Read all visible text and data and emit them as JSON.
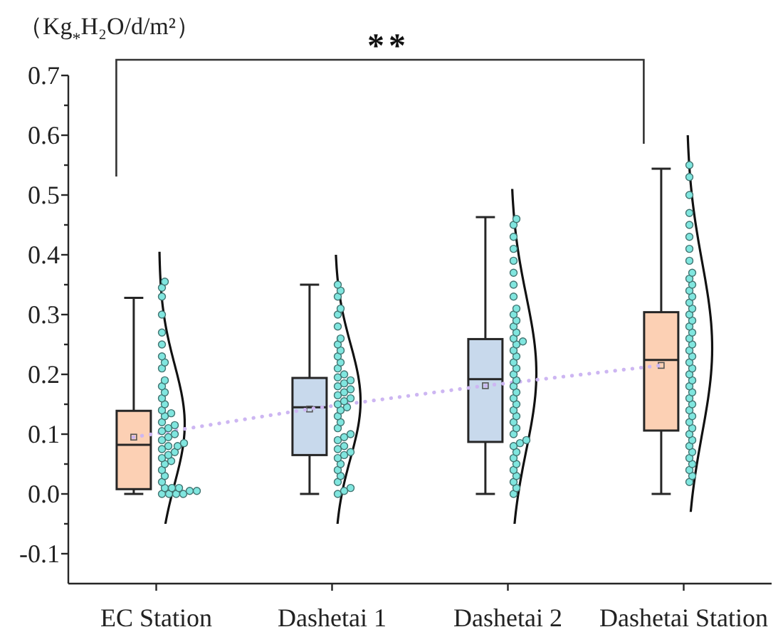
{
  "chart_data": {
    "type": "box",
    "ylabel": "（Kg$_{*}$H₂O/d/m²）",
    "annotations": [
      "**"
    ],
    "categories": [
      "EC Station",
      "Dashetai 1",
      "Dashetai 2",
      "Dashetai Station"
    ],
    "ylim": [
      -0.15,
      0.7
    ],
    "yticks": [
      -0.1,
      {
        "value": -0.05,
        "label": null
      },
      {
        "value": 0,
        "label": "0.0"
      },
      {
        "value": 0.05,
        "label": null
      },
      0.1,
      {
        "value": 0.15,
        "label": null
      },
      0.2,
      {
        "value": 0.25,
        "label": null
      },
      0.3,
      {
        "value": 0.35,
        "label": null
      },
      0.4,
      {
        "value": 0.45,
        "label": null
      },
      0.5,
      {
        "value": 0.55,
        "label": null
      },
      0.6,
      {
        "value": 0.65,
        "label": null
      },
      0.7
    ],
    "series": [
      {
        "type": "box",
        "colors": [
          "#fcd0b4",
          "#c8d9ec",
          "#c8d9ec",
          "#fcd0b4"
        ],
        "boxes": [
          {
            "low": 0,
            "q1": 0.008,
            "median": 0.082,
            "q3": 0.139,
            "high": 0.328,
            "mean": 0.095
          },
          {
            "low": 0,
            "q1": 0.065,
            "median": 0.145,
            "q3": 0.194,
            "high": 0.35,
            "mean": 0.142
          },
          {
            "low": 0,
            "q1": 0.087,
            "median": 0.192,
            "q3": 0.259,
            "high": 0.463,
            "mean": 0.181
          },
          {
            "low": 0,
            "q1": 0.106,
            "median": 0.224,
            "q3": 0.304,
            "high": 0.544,
            "mean": 0.215
          }
        ]
      },
      {
        "type": "line",
        "color": "#cdb6f2",
        "line_style": "dotted",
        "values": [
          0.095,
          0.142,
          0.181,
          0.215
        ]
      },
      {
        "type": "scatter",
        "color": "#80e6df",
        "marker": "circle",
        "x": [
          "EC Station",
          "EC Station",
          "EC Station",
          "EC Station",
          "EC Station",
          "EC Station",
          "EC Station",
          "EC Station",
          "EC Station",
          "EC Station",
          "EC Station",
          "EC Station",
          "EC Station",
          "EC Station",
          "EC Station",
          "EC Station",
          "EC Station",
          "EC Station",
          "EC Station",
          "EC Station",
          "EC Station",
          "EC Station",
          "EC Station",
          "EC Station",
          "EC Station",
          "EC Station",
          "EC Station",
          "EC Station",
          "EC Station",
          "EC Station",
          "EC Station",
          "EC Station",
          "EC Station",
          "EC Station",
          "EC Station",
          "EC Station",
          "EC Station",
          "EC Station",
          "EC Station",
          "EC Station",
          "EC Station",
          "EC Station",
          "EC Station",
          "EC Station",
          "EC Station",
          "Dashetai 1",
          "Dashetai 1",
          "Dashetai 1",
          "Dashetai 1",
          "Dashetai 1",
          "Dashetai 1",
          "Dashetai 1",
          "Dashetai 1",
          "Dashetai 1",
          "Dashetai 1",
          "Dashetai 1",
          "Dashetai 1",
          "Dashetai 1",
          "Dashetai 1",
          "Dashetai 1",
          "Dashetai 1",
          "Dashetai 1",
          "Dashetai 1",
          "Dashetai 1",
          "Dashetai 1",
          "Dashetai 1",
          "Dashetai 1",
          "Dashetai 1",
          "Dashetai 1",
          "Dashetai 1",
          "Dashetai 1",
          "Dashetai 1",
          "Dashetai 1",
          "Dashetai 1",
          "Dashetai 1",
          "Dashetai 1",
          "Dashetai 1",
          "Dashetai 1",
          "Dashetai 1",
          "Dashetai 1",
          "Dashetai 1",
          "Dashetai 1",
          "Dashetai 1",
          "Dashetai 1",
          "Dashetai 1",
          "Dashetai 1",
          "Dashetai 1",
          "Dashetai 1",
          "Dashetai 2",
          "Dashetai 2",
          "Dashetai 2",
          "Dashetai 2",
          "Dashetai 2",
          "Dashetai 2",
          "Dashetai 2",
          "Dashetai 2",
          "Dashetai 2",
          "Dashetai 2",
          "Dashetai 2",
          "Dashetai 2",
          "Dashetai 2",
          "Dashetai 2",
          "Dashetai 2",
          "Dashetai 2",
          "Dashetai 2",
          "Dashetai 2",
          "Dashetai 2",
          "Dashetai 2",
          "Dashetai 2",
          "Dashetai 2",
          "Dashetai 2",
          "Dashetai 2",
          "Dashetai 2",
          "Dashetai 2",
          "Dashetai 2",
          "Dashetai 2",
          "Dashetai 2",
          "Dashetai 2",
          "Dashetai 2",
          "Dashetai 2",
          "Dashetai 2",
          "Dashetai 2",
          "Dashetai 2",
          "Dashetai 2",
          "Dashetai 2",
          "Dashetai 2",
          "Dashetai 2",
          "Dashetai 2",
          "Dashetai 2",
          "Dashetai 2",
          "Dashetai Station",
          "Dashetai Station",
          "Dashetai Station",
          "Dashetai Station",
          "Dashetai Station",
          "Dashetai Station",
          "Dashetai Station",
          "Dashetai Station",
          "Dashetai Station",
          "Dashetai Station",
          "Dashetai Station",
          "Dashetai Station",
          "Dashetai Station",
          "Dashetai Station",
          "Dashetai Station",
          "Dashetai Station",
          "Dashetai Station",
          "Dashetai Station",
          "Dashetai Station",
          "Dashetai Station",
          "Dashetai Station",
          "Dashetai Station",
          "Dashetai Station",
          "Dashetai Station",
          "Dashetai Station",
          "Dashetai Station",
          "Dashetai Station",
          "Dashetai Station",
          "Dashetai Station",
          "Dashetai Station",
          "Dashetai Station",
          "Dashetai Station",
          "Dashetai Station",
          "Dashetai Station",
          "Dashetai Station",
          "Dashetai Station",
          "Dashetai Station",
          "Dashetai Station",
          "Dashetai Station",
          "Dashetai Station",
          "Dashetai Station",
          "Dashetai Station",
          "Dashetai Station",
          "Dashetai Station"
        ],
        "values": [
          0,
          0,
          0,
          0,
          0.005,
          0.005,
          0.01,
          0.01,
          0.01,
          0.02,
          0.03,
          0.04,
          0.05,
          0.055,
          0.06,
          0.065,
          0.07,
          0.075,
          0.08,
          0.08,
          0.085,
          0.09,
          0.095,
          0.1,
          0.105,
          0.11,
          0.115,
          0.12,
          0.13,
          0.135,
          0.14,
          0.15,
          0.16,
          0.17,
          0.18,
          0.19,
          0.21,
          0.22,
          0.23,
          0.25,
          0.27,
          0.3,
          0.33,
          0.345,
          0.355,
          0,
          0.005,
          0.01,
          0.02,
          0.03,
          0.04,
          0.05,
          0.06,
          0.065,
          0.07,
          0.075,
          0.08,
          0.09,
          0.095,
          0.1,
          0.11,
          0.12,
          0.13,
          0.14,
          0.145,
          0.15,
          0.155,
          0.16,
          0.165,
          0.17,
          0.175,
          0.18,
          0.185,
          0.19,
          0.195,
          0.2,
          0.21,
          0.22,
          0.23,
          0.24,
          0.25,
          0.26,
          0.28,
          0.3,
          0.31,
          0.33,
          0.34,
          0.35,
          0,
          0.01,
          0.02,
          0.03,
          0.04,
          0.05,
          0.06,
          0.07,
          0.08,
          0.085,
          0.09,
          0.1,
          0.11,
          0.12,
          0.13,
          0.14,
          0.15,
          0.16,
          0.17,
          0.18,
          0.19,
          0.2,
          0.21,
          0.22,
          0.23,
          0.24,
          0.25,
          0.255,
          0.26,
          0.27,
          0.28,
          0.29,
          0.3,
          0.31,
          0.33,
          0.35,
          0.37,
          0.39,
          0.41,
          0.43,
          0.45,
          0.46,
          0.02,
          0.03,
          0.04,
          0.05,
          0.06,
          0.07,
          0.08,
          0.09,
          0.1,
          0.11,
          0.12,
          0.13,
          0.14,
          0.15,
          0.16,
          0.17,
          0.18,
          0.19,
          0.2,
          0.21,
          0.22,
          0.23,
          0.24,
          0.25,
          0.26,
          0.27,
          0.28,
          0.29,
          0.3,
          0.31,
          0.32,
          0.33,
          0.34,
          0.35,
          0.36,
          0.37,
          0.39,
          0.41,
          0.43,
          0.45,
          0.47,
          0.5,
          0.53,
          0.55
        ]
      }
    ]
  }
}
